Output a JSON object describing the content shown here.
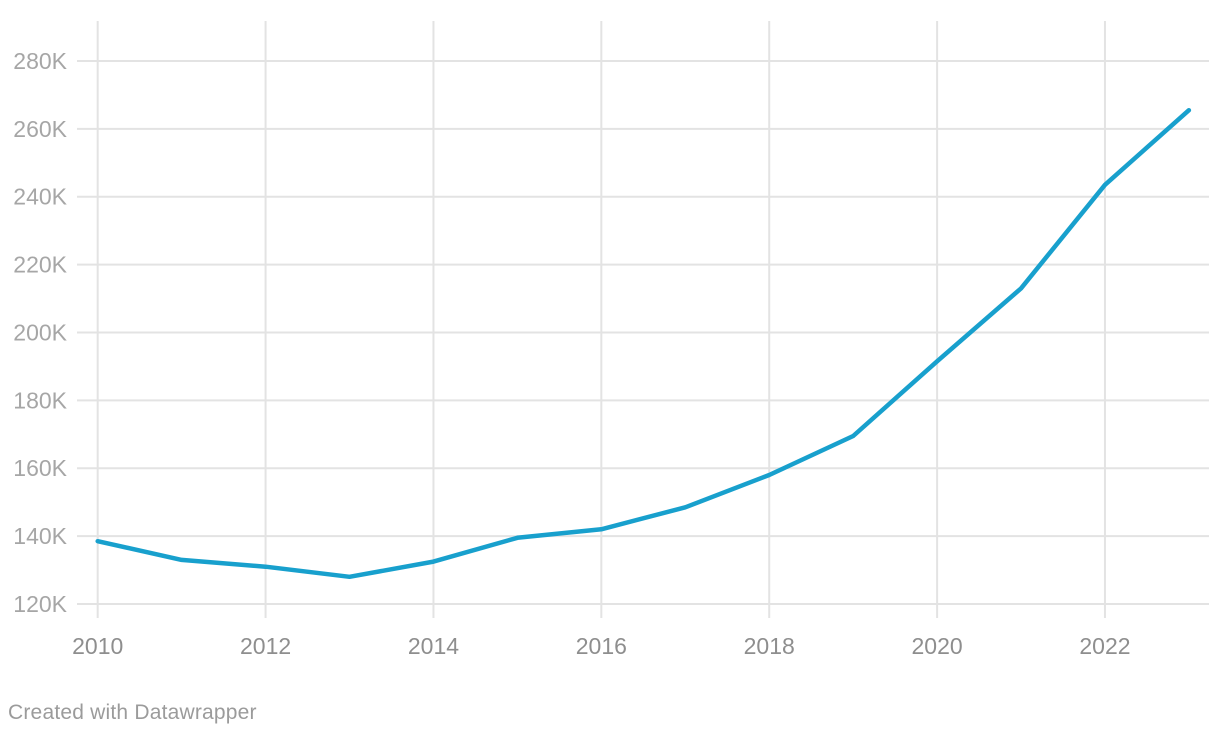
{
  "chart_data": {
    "type": "line",
    "title": "",
    "xlabel": "",
    "ylabel": "",
    "x": [
      2010,
      2011,
      2012,
      2013,
      2014,
      2015,
      2016,
      2017,
      2018,
      2019,
      2020,
      2021,
      2022,
      2023
    ],
    "values": [
      138500,
      133000,
      131000,
      128000,
      132500,
      139500,
      142000,
      148500,
      158000,
      169500,
      191500,
      213000,
      243500,
      265500
    ],
    "series": [
      {
        "name": "value",
        "values": [
          138500,
          133000,
          131000,
          128000,
          132500,
          139500,
          142000,
          148500,
          158000,
          169500,
          191500,
          213000,
          243500,
          265500
        ]
      }
    ],
    "x_ticks": [
      2010,
      2012,
      2014,
      2016,
      2018,
      2020,
      2022
    ],
    "x_tick_labels": [
      "2010",
      "2012",
      "2014",
      "2016",
      "2018",
      "2020",
      "2022"
    ],
    "y_ticks": [
      120000,
      140000,
      160000,
      180000,
      200000,
      220000,
      240000,
      260000,
      280000
    ],
    "y_tick_labels": [
      "120K",
      "140K",
      "160K",
      "180K",
      "200K",
      "220K",
      "240K",
      "260K",
      "280K"
    ],
    "xlim": [
      2009.75,
      2023.25
    ],
    "ylim": [
      116000,
      292000
    ],
    "grid": true,
    "legend": false
  },
  "footer": {
    "credit": "Created with Datawrapper"
  },
  "colors": {
    "line": "#18A0CD",
    "grid": "#E3E3E3",
    "y_label": "#A6A6A6",
    "x_label": "#8E8E8E",
    "footer_text": "#9B9B9B",
    "background": "#FFFFFF"
  }
}
